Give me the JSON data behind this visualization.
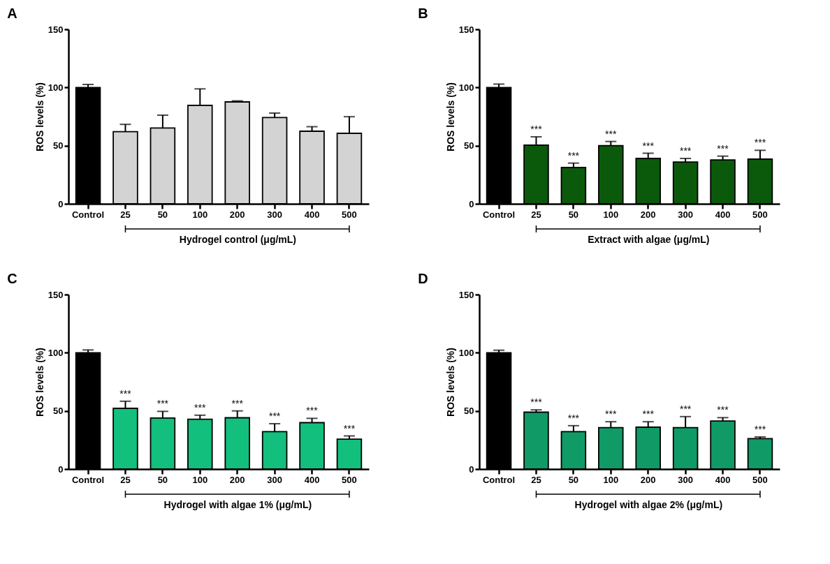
{
  "chart_data": [
    {
      "type": "bar",
      "title": "A",
      "xlabel": "Hydrogel control (μg/mL)",
      "ylabel": "ROS levels (%)",
      "categories": [
        "Control",
        "25",
        "50",
        "100",
        "200",
        "300",
        "400",
        "500"
      ],
      "values": [
        100,
        62,
        65.2,
        84.6,
        87.6,
        74.2,
        62.4,
        60.6
      ],
      "colors": [
        "#000000",
        "#d3d3d3",
        "#d3d3d3",
        "#d3d3d3",
        "#d3d3d3",
        "#d3d3d3",
        "#d3d3d3",
        "#d3d3d3"
      ],
      "errors": [
        [
          100,
          102.6
        ],
        [
          62,
          68.3
        ],
        [
          65.2,
          76.2
        ],
        [
          84.6,
          98.8
        ],
        [
          87.6,
          88.5
        ],
        [
          74.2,
          78
        ],
        [
          62.4,
          66.3
        ],
        [
          60.6,
          74.9
        ]
      ],
      "ylim": [
        0,
        150
      ],
      "yticks": [
        0,
        50,
        100,
        150
      ],
      "grid": false,
      "legend": false
    },
    {
      "type": "bar",
      "title": "B",
      "xlabel": "Extract with algae (μg/mL)",
      "ylabel": "ROS levels (%)",
      "categories": [
        "Control",
        "25",
        "50",
        "100",
        "200",
        "300",
        "400",
        "500"
      ],
      "values": [
        100,
        50.4,
        31.2,
        50,
        39,
        35.9,
        37.7,
        38.4
      ],
      "colors": [
        "#000000",
        "#0b5a0b",
        "#0b5a0b",
        "#0b5a0b",
        "#0b5a0b",
        "#0b5a0b",
        "#0b5a0b",
        "#0b5a0b"
      ],
      "errors": [
        [
          100,
          102.9
        ],
        [
          50.4,
          57.6
        ],
        [
          31.2,
          35
        ],
        [
          50,
          53.6
        ],
        [
          39,
          43.5
        ],
        [
          35.9,
          39
        ],
        [
          37.7,
          41
        ],
        [
          38.4,
          46
        ]
      ],
      "ylim": [
        0,
        150
      ],
      "yticks": [
        0,
        50,
        100,
        150
      ],
      "grid": false,
      "legend": false,
      "annotations": [
        {
          "text": "***",
          "x": "25",
          "y": 57.6
        },
        {
          "text": "***",
          "x": "50",
          "y": 35
        },
        {
          "text": "***",
          "x": "100",
          "y": 53.6
        },
        {
          "text": "***",
          "x": "200",
          "y": 43.5
        },
        {
          "text": "***",
          "x": "300",
          "y": 39
        },
        {
          "text": "***",
          "x": "400",
          "y": 41
        },
        {
          "text": "***",
          "x": "500",
          "y": 46
        }
      ]
    },
    {
      "type": "bar",
      "title": "C",
      "xlabel": "Hydrogel with algae 1% (μg/mL)",
      "ylabel": "ROS levels (%)",
      "categories": [
        "Control",
        "25",
        "50",
        "100",
        "200",
        "300",
        "400",
        "500"
      ],
      "values": [
        100,
        52.2,
        43.9,
        42.8,
        44.1,
        32.2,
        39.9,
        25.7
      ],
      "colors": [
        "#000000",
        "#12bf7c",
        "#12bf7c",
        "#12bf7c",
        "#12bf7c",
        "#12bf7c",
        "#12bf7c",
        "#12bf7c"
      ],
      "errors": [
        [
          100,
          102.4
        ],
        [
          52.2,
          58.3
        ],
        [
          43.9,
          49.6
        ],
        [
          42.8,
          46.3
        ],
        [
          44.1,
          50
        ],
        [
          32.2,
          39
        ],
        [
          39.9,
          43.6
        ],
        [
          25.7,
          28.5
        ]
      ],
      "ylim": [
        0,
        150
      ],
      "yticks": [
        0,
        50,
        100,
        150
      ],
      "grid": false,
      "legend": false,
      "annotations": [
        {
          "text": "***",
          "x": "25",
          "y": 58.3
        },
        {
          "text": "***",
          "x": "50",
          "y": 49.6
        },
        {
          "text": "***",
          "x": "100",
          "y": 46.3
        },
        {
          "text": "***",
          "x": "200",
          "y": 50
        },
        {
          "text": "***",
          "x": "300",
          "y": 39
        },
        {
          "text": "***",
          "x": "400",
          "y": 43.6
        },
        {
          "text": "***",
          "x": "500",
          "y": 28.5
        }
      ]
    },
    {
      "type": "bar",
      "title": "D",
      "xlabel": "Hydrogel with algae 2% (μg/mL)",
      "ylabel": "ROS levels (%)",
      "categories": [
        "Control",
        "25",
        "50",
        "100",
        "200",
        "300",
        "400",
        "500"
      ],
      "values": [
        100,
        48.9,
        32.2,
        35.6,
        36,
        35.6,
        41.3,
        26.2
      ],
      "colors": [
        "#000000",
        "#0f9a66",
        "#0f9a66",
        "#0f9a66",
        "#0f9a66",
        "#0f9a66",
        "#0f9a66",
        "#0f9a66"
      ],
      "errors": [
        [
          100,
          102.2
        ],
        [
          48.9,
          50.9
        ],
        [
          32.2,
          37.3
        ],
        [
          35.6,
          40.7
        ],
        [
          36,
          40.7
        ],
        [
          35.6,
          45.1
        ],
        [
          41.3,
          44.2
        ],
        [
          26.2,
          27.6
        ]
      ],
      "ylim": [
        0,
        150
      ],
      "yticks": [
        0,
        50,
        100,
        150
      ],
      "grid": false,
      "legend": false,
      "annotations": [
        {
          "text": "***",
          "x": "25",
          "y": 50.9
        },
        {
          "text": "***",
          "x": "50",
          "y": 37.3
        },
        {
          "text": "***",
          "x": "100",
          "y": 40.7
        },
        {
          "text": "***",
          "x": "200",
          "y": 40.7
        },
        {
          "text": "***",
          "x": "300",
          "y": 45.1
        },
        {
          "text": "***",
          "x": "400",
          "y": 44.2
        },
        {
          "text": "***",
          "x": "500",
          "y": 27.6
        }
      ]
    }
  ]
}
